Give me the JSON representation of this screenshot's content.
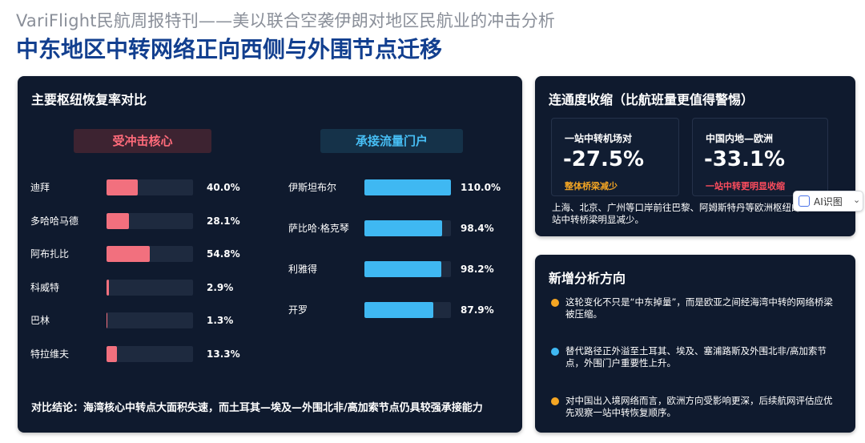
{
  "header": {
    "subtitle": "VariFlight民航周报特刊——美以联合空袭伊朗对地区民航业的冲击分析",
    "title": "中东地区中转网络正向西侧与外围节点迁移"
  },
  "hub_card": {
    "title": "主要枢纽恢复率对比",
    "impact_label": "受冲击核心",
    "gateway_label": "承接流量门户",
    "impact_hubs": [
      {
        "name": "迪拜",
        "rate": 40.0,
        "rate_label": "40.0%"
      },
      {
        "name": "多哈哈马德",
        "rate": 28.1,
        "rate_label": "28.1%"
      },
      {
        "name": "阿布扎比",
        "rate": 54.8,
        "rate_label": "54.8%"
      },
      {
        "name": "科威特",
        "rate": 2.9,
        "rate_label": "2.9%"
      },
      {
        "name": "巴林",
        "rate": 1.3,
        "rate_label": "1.3%"
      },
      {
        "name": "特拉维夫",
        "rate": 13.3,
        "rate_label": "13.3%"
      }
    ],
    "gateway_hubs": [
      {
        "name": "伊斯坦布尔",
        "rate": 110.0,
        "rate_label": "110.0%"
      },
      {
        "name": "萨比哈·格克琴",
        "rate": 98.4,
        "rate_label": "98.4%"
      },
      {
        "name": "利雅得",
        "rate": 98.2,
        "rate_label": "98.2%"
      },
      {
        "name": "开罗",
        "rate": 87.9,
        "rate_label": "87.9%"
      }
    ],
    "conclusion": "对比结论：海湾核心中转点大面积失速，而土耳其—埃及—外围北非/高加索节点仍具较强承接能力"
  },
  "connectivity_card": {
    "title": "连通度收缩（比航班量更值得警惕）",
    "stats": [
      {
        "label": "一站中转机场对",
        "value": "-27.5%",
        "note": "整体桥梁减少"
      },
      {
        "label": "中国内地—欧洲",
        "value": "-33.1%",
        "note": "一站中转更明显收缩"
      }
    ],
    "description": "上海、北京、广州等口岸前往巴黎、阿姆斯特丹等欧洲枢纽的一站中转桥梁明显减少。"
  },
  "ai_badge": {
    "label": "AI识图",
    "caret": "⌄"
  },
  "analysis_card": {
    "title": "新增分析方向",
    "bullets": [
      {
        "text": "这轮变化不只是“中东掉量”，而是欧亚之间经海湾中转的网络桥梁被压缩。",
        "color": "#f5a623"
      },
      {
        "text": "替代路径正外溢至土耳其、埃及、塞浦路斯及外围北非/高加索节点，外围门户重要性上升。",
        "color": "#3fb8f2"
      },
      {
        "text": "对中国出入境网络而言，欧洲方向受影响更深，后续航网评估应优先观察一站中转恢复顺序。",
        "color": "#f5a623"
      }
    ]
  },
  "colors": {
    "title_blue": "#123f8f",
    "card_bg": "#0f1a2e",
    "impact_red": "#f2707e",
    "gateway_blue": "#3fb8f2",
    "note_orange": "#f5a623",
    "note_red": "#ff4d5e"
  }
}
